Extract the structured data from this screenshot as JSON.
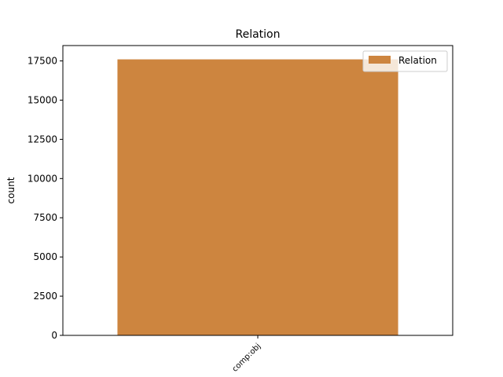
{
  "chart_data": {
    "type": "bar",
    "title": "Relation",
    "xlabel": "",
    "ylabel": "count",
    "categories": [
      "comp:obj"
    ],
    "series": [
      {
        "name": "Relation",
        "values": [
          17600
        ]
      }
    ],
    "ylim": [
      0,
      18480
    ],
    "yticks": [
      0,
      2500,
      5000,
      7500,
      10000,
      12500,
      15000,
      17500
    ],
    "ytick_labels": [
      "0",
      "2500",
      "5000",
      "7500",
      "10000",
      "12500",
      "15000",
      "17500"
    ],
    "bar_color": "#cd853f",
    "grid": false,
    "legend_position": "top-right"
  }
}
